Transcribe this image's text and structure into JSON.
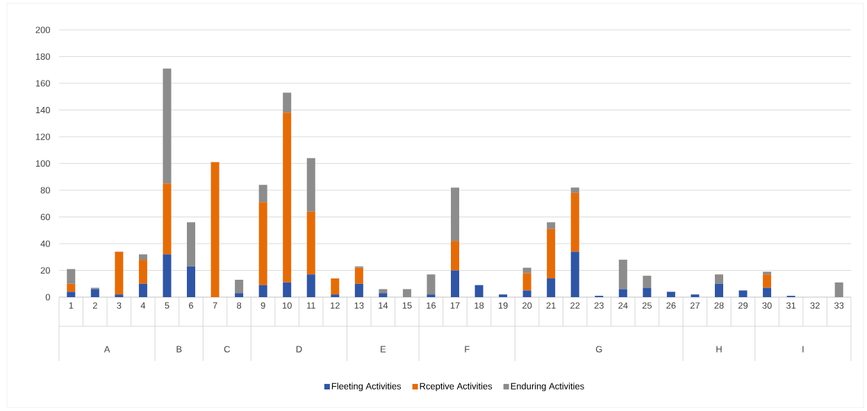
{
  "chart_data": {
    "type": "bar",
    "stacked": true,
    "categories": [
      "1",
      "2",
      "3",
      "4",
      "5",
      "6",
      "7",
      "8",
      "9",
      "10",
      "11",
      "12",
      "13",
      "14",
      "15",
      "16",
      "17",
      "18",
      "19",
      "20",
      "21",
      "22",
      "23",
      "24",
      "25",
      "26",
      "27",
      "28",
      "29",
      "30",
      "31",
      "32",
      "33"
    ],
    "series": [
      {
        "name": "Fleeting Activities",
        "color": "#2f55a4",
        "values": [
          4,
          6,
          2,
          10,
          32,
          23,
          0,
          3,
          9,
          11,
          17,
          2,
          10,
          3,
          0,
          2,
          20,
          9,
          2,
          5,
          14,
          34,
          1,
          6,
          7,
          4,
          2,
          10,
          5,
          7,
          1,
          0,
          0
        ]
      },
      {
        "name": "Rceptive Activities",
        "color": "#e36c0a",
        "values": [
          6,
          0,
          32,
          18,
          53,
          0,
          101,
          0,
          62,
          127,
          47,
          12,
          12,
          0,
          0,
          0,
          22,
          0,
          0,
          13,
          37,
          44,
          0,
          0,
          0,
          0,
          0,
          0,
          0,
          10,
          0,
          0,
          0
        ]
      },
      {
        "name": "Enduring Activities",
        "color": "#8c8c8c",
        "values": [
          11,
          1,
          0,
          4,
          86,
          33,
          0,
          10,
          13,
          15,
          40,
          0,
          1,
          3,
          6,
          15,
          40,
          0,
          0,
          4,
          5,
          4,
          0,
          22,
          9,
          0,
          0,
          7,
          0,
          2,
          0,
          0,
          11
        ]
      }
    ],
    "ylim": [
      0,
      200
    ],
    "yticks": [
      0,
      20,
      40,
      60,
      80,
      100,
      120,
      140,
      160,
      180,
      200
    ],
    "grid": "y",
    "legend": "bottom",
    "annotations": [
      "A",
      "B",
      "C",
      "D",
      "E",
      "F",
      "G",
      "H",
      "I"
    ]
  }
}
